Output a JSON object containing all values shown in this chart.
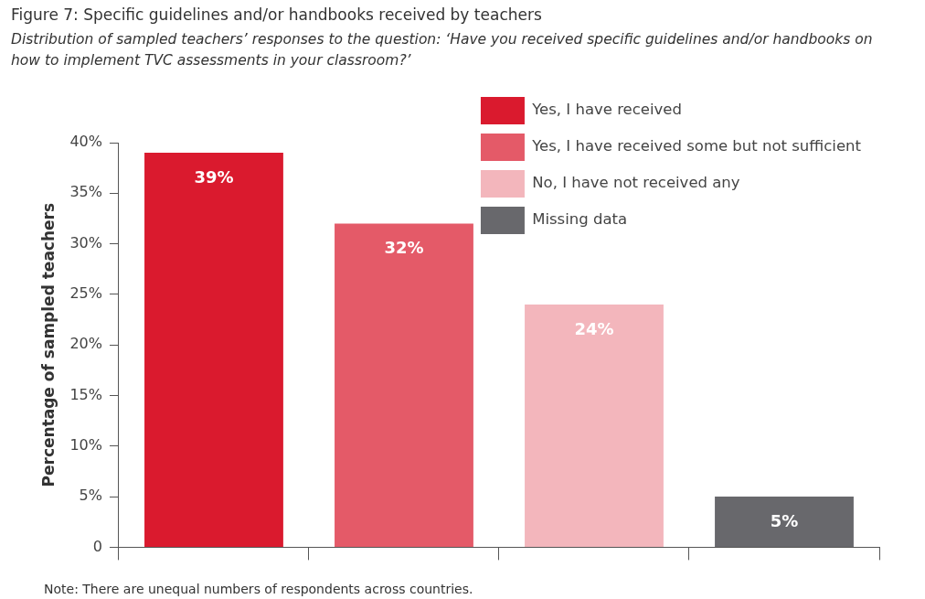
{
  "chart_data": {
    "type": "bar",
    "title": "Figure 7: Specific guidelines and/or handbooks received by teachers",
    "subtitle": "Distribution of sampled teachers’ responses to the question: ‘Have you received specific guidelines and/or handbooks on how to implement TVC assessments in your classroom?’",
    "ylabel": "Percentage of sampled teachers",
    "categories": [
      null,
      null,
      null,
      null
    ],
    "series": [
      {
        "name": "Yes, I have received",
        "color": "#da1a2e",
        "values": [
          39,
          null,
          null,
          null
        ],
        "value_labels": [
          "39%",
          null,
          null,
          null
        ]
      },
      {
        "name": "Yes, I have received some but not sufficient",
        "color": "#e45a68",
        "values": [
          null,
          32,
          null,
          null
        ],
        "value_labels": [
          null,
          "32%",
          null,
          null
        ]
      },
      {
        "name": "No, I have not received any",
        "color": "#f3b6bc",
        "values": [
          null,
          null,
          24,
          null
        ],
        "value_labels": [
          null,
          null,
          "24%",
          null
        ]
      },
      {
        "name": "Missing data",
        "color": "#68686c",
        "values": [
          null,
          null,
          null,
          5
        ],
        "value_labels": [
          null,
          null,
          null,
          "5%"
        ]
      }
    ],
    "ylim": [
      0,
      40
    ],
    "yticks": [
      0,
      {
        "value": 5,
        "label": "5%"
      },
      {
        "value": 10,
        "label": "10%"
      },
      {
        "value": 15,
        "label": "15%"
      },
      {
        "value": 20,
        "label": "20%"
      },
      {
        "value": 25,
        "label": "25%"
      },
      {
        "value": 30,
        "label": "30%"
      },
      {
        "value": 35,
        "label": "35%"
      },
      {
        "value": 40,
        "label": "40%"
      }
    ],
    "tick_labels": "y",
    "legend": "top right",
    "annotations": [
      "Note: There are unequal numbers of respondents across countries."
    ]
  }
}
